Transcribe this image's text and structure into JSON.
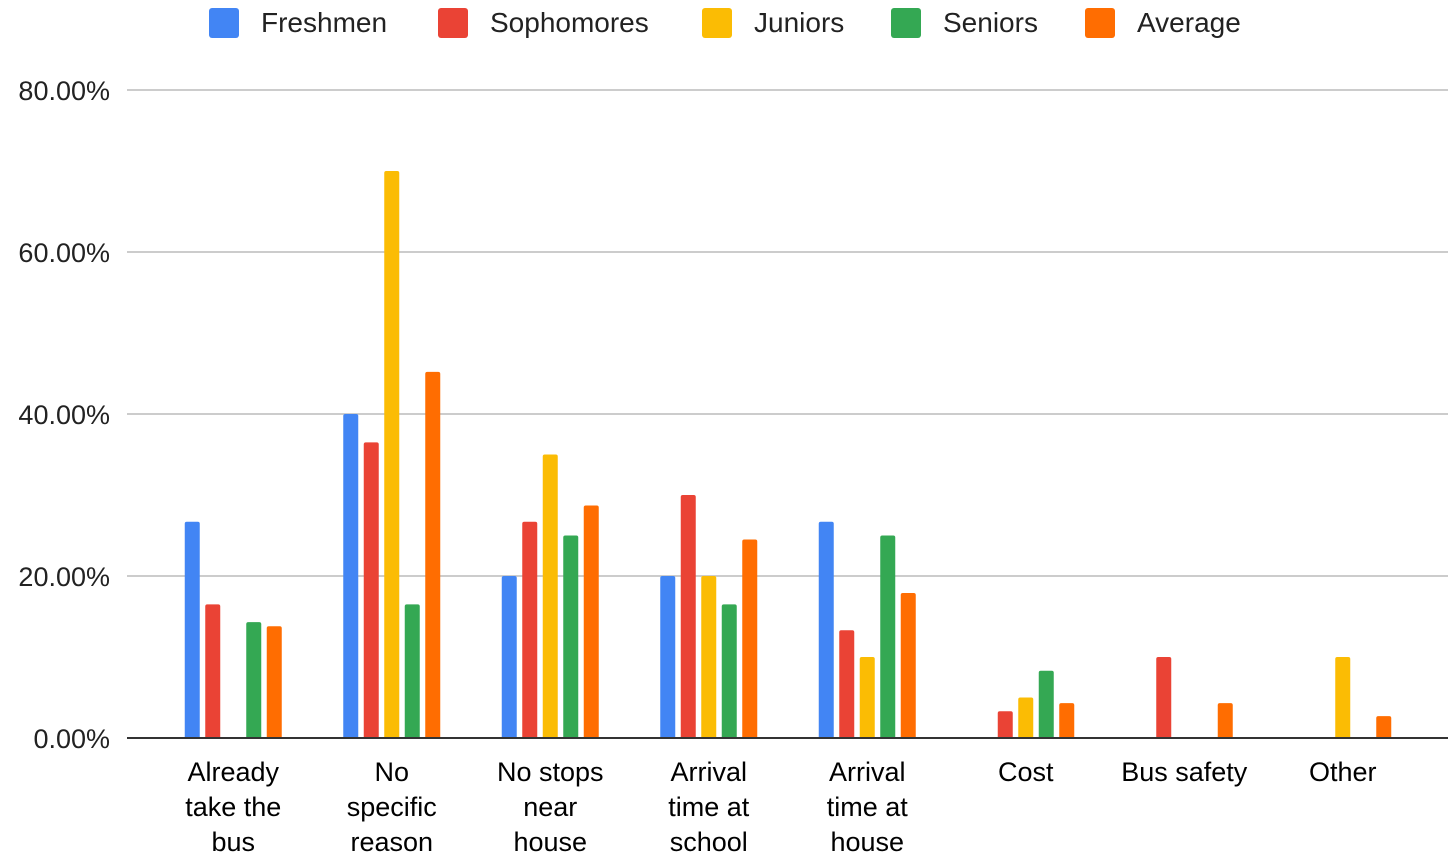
{
  "chart_data": {
    "type": "bar",
    "title": "",
    "xlabel": "",
    "ylabel": "",
    "ylim": [
      0,
      80
    ],
    "y_ticks": [
      {
        "value": 0,
        "label": "0.00%"
      },
      {
        "value": 20,
        "label": "20.00%"
      },
      {
        "value": 40,
        "label": "40.00%"
      },
      {
        "value": 60,
        "label": "60.00%"
      },
      {
        "value": 80,
        "label": "80.00%"
      }
    ],
    "grid": true,
    "legend": "top-center",
    "categories": [
      [
        "Already",
        "take the",
        "bus"
      ],
      [
        "No",
        "specific",
        "reason"
      ],
      [
        "No stops",
        "near",
        "house"
      ],
      [
        "Arrival",
        "time at",
        "school"
      ],
      [
        "Arrival",
        "time at",
        "house"
      ],
      [
        "Cost"
      ],
      [
        "Bus safety"
      ],
      [
        "Other"
      ]
    ],
    "series": [
      {
        "name": "Freshmen",
        "color": "#4285F4",
        "values": [
          26.7,
          40.0,
          20.0,
          20.0,
          26.7,
          0,
          0,
          0
        ]
      },
      {
        "name": "Sophomores",
        "color": "#EA4335",
        "values": [
          16.5,
          36.5,
          26.7,
          30.0,
          13.3,
          3.3,
          10.0,
          0
        ]
      },
      {
        "name": "Juniors",
        "color": "#FBBC04",
        "values": [
          0,
          70.0,
          35.0,
          20.0,
          10.0,
          5.0,
          0,
          10.0
        ]
      },
      {
        "name": "Seniors",
        "color": "#34A853",
        "values": [
          14.3,
          16.5,
          25.0,
          16.5,
          25.0,
          8.3,
          0,
          0
        ]
      },
      {
        "name": "Average",
        "color": "#FF6D01",
        "values": [
          13.8,
          45.2,
          28.7,
          24.5,
          17.9,
          4.3,
          4.3,
          2.7
        ]
      }
    ]
  }
}
